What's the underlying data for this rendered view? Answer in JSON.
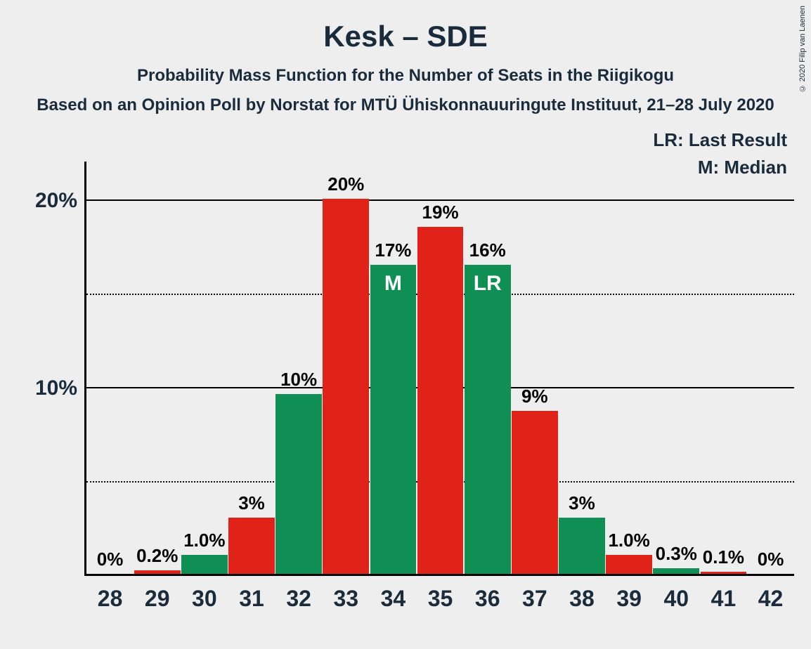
{
  "title": "Kesk – SDE",
  "subtitle1": "Probability Mass Function for the Number of Seats in the Riigikogu",
  "subtitle2": "Based on an Opinion Poll by Norstat for MTÜ Ühiskonnauuringute Instituut, 21–28 July 2020",
  "copyright": "© 2020 Filip van Laenen",
  "legend": {
    "lr": "LR: Last Result",
    "m": "M: Median"
  },
  "chart": {
    "type": "bar",
    "background_color": "#eeeeee",
    "text_color": "#1a2b3c",
    "title_fontsize": 42,
    "subtitle_fontsize": 24,
    "axis_fontsize": 30,
    "bar_label_fontsize": 26,
    "colors": {
      "green": "#108f54",
      "red": "#e02219"
    },
    "y_axis": {
      "max_percent": 22,
      "ticks": [
        {
          "value": 5,
          "label": "",
          "style": "dotted"
        },
        {
          "value": 10,
          "label": "10%",
          "style": "solid"
        },
        {
          "value": 15,
          "label": "",
          "style": "dotted"
        },
        {
          "value": 20,
          "label": "20%",
          "style": "solid"
        }
      ]
    },
    "bars": [
      {
        "x": "28",
        "value": 0,
        "label": "0%",
        "color": "green",
        "marker": ""
      },
      {
        "x": "29",
        "value": 0.2,
        "label": "0.2%",
        "color": "red",
        "marker": ""
      },
      {
        "x": "30",
        "value": 1.0,
        "label": "1.0%",
        "color": "green",
        "marker": ""
      },
      {
        "x": "31",
        "value": 3,
        "label": "3%",
        "color": "red",
        "marker": ""
      },
      {
        "x": "32",
        "value": 9.6,
        "label": "10%",
        "color": "green",
        "marker": ""
      },
      {
        "x": "33",
        "value": 20,
        "label": "20%",
        "color": "red",
        "marker": ""
      },
      {
        "x": "34",
        "value": 16.5,
        "label": "17%",
        "color": "green",
        "marker": "M"
      },
      {
        "x": "35",
        "value": 18.5,
        "label": "19%",
        "color": "red",
        "marker": ""
      },
      {
        "x": "36",
        "value": 16.5,
        "label": "16%",
        "color": "green",
        "marker": "LR"
      },
      {
        "x": "37",
        "value": 8.7,
        "label": "9%",
        "color": "red",
        "marker": ""
      },
      {
        "x": "38",
        "value": 3,
        "label": "3%",
        "color": "green",
        "marker": ""
      },
      {
        "x": "39",
        "value": 1.0,
        "label": "1.0%",
        "color": "red",
        "marker": ""
      },
      {
        "x": "40",
        "value": 0.3,
        "label": "0.3%",
        "color": "green",
        "marker": ""
      },
      {
        "x": "41",
        "value": 0.1,
        "label": "0.1%",
        "color": "red",
        "marker": ""
      },
      {
        "x": "42",
        "value": 0,
        "label": "0%",
        "color": "green",
        "marker": ""
      }
    ]
  }
}
